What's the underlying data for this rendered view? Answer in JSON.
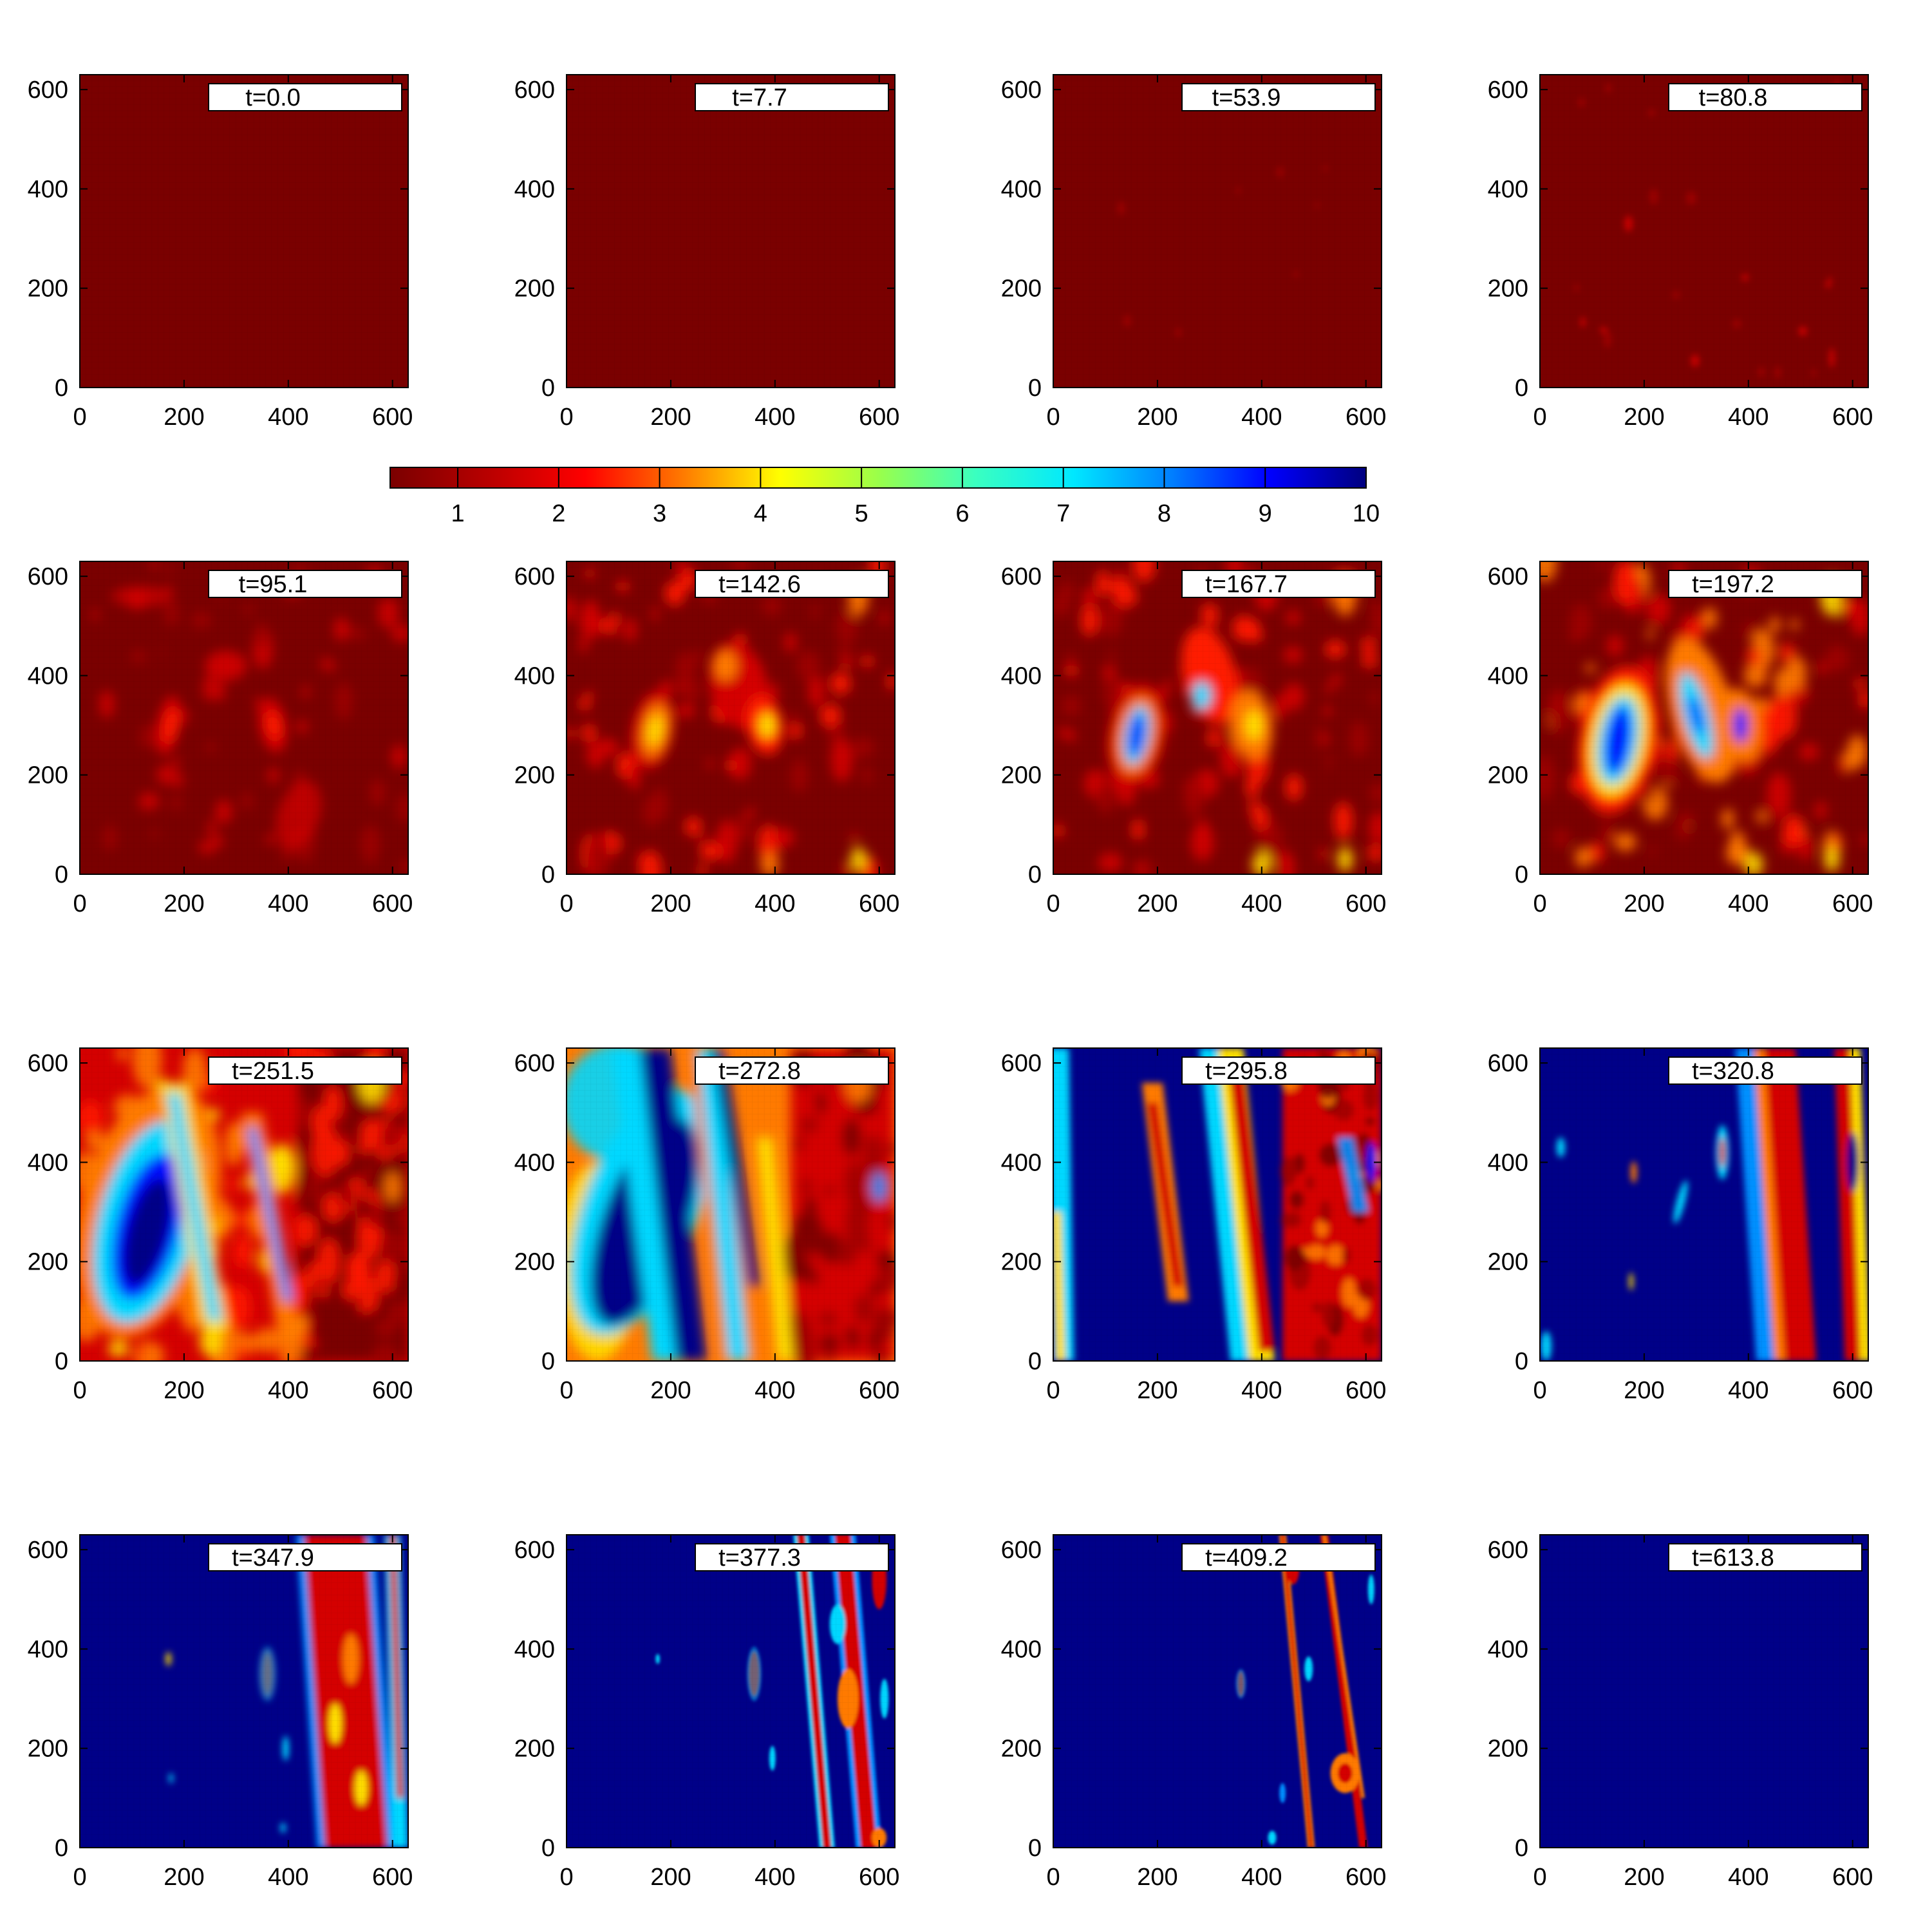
{
  "chart_data": {
    "type": "heatmap",
    "grid": {
      "rows": 4,
      "cols": 4
    },
    "x_ticks": [
      0,
      200,
      400,
      600
    ],
    "y_ticks": [
      0,
      200,
      400,
      600
    ],
    "xlim": [
      0,
      630
    ],
    "ylim": [
      0,
      630
    ],
    "colorbar": {
      "ticks": [
        1,
        2,
        3,
        4,
        5,
        6,
        7,
        8,
        9,
        10
      ],
      "range": [
        0.33,
        10
      ],
      "stops": [
        "#7a0000",
        "#b80000",
        "#ff0000",
        "#ff7a00",
        "#ffff00",
        "#9aff4a",
        "#3affc0",
        "#00e8ff",
        "#0080ff",
        "#0000ff",
        "#00007f"
      ]
    },
    "panels": [
      {
        "label": "t=0.0",
        "scene": "uniform_red"
      },
      {
        "label": "t=7.7",
        "scene": "uniform_red"
      },
      {
        "label": "t=53.9",
        "scene": "faint_specks"
      },
      {
        "label": "t=80.8",
        "scene": "sparse_specks"
      },
      {
        "label": "t=95.1",
        "scene": "early_patches"
      },
      {
        "label": "t=142.6",
        "scene": "growing_patches"
      },
      {
        "label": "t=167.7",
        "scene": "blue_core"
      },
      {
        "label": "t=197.2",
        "scene": "blue_core_large"
      },
      {
        "label": "t=251.5",
        "scene": "spreading_blue"
      },
      {
        "label": "t=272.8",
        "scene": "left_blue"
      },
      {
        "label": "t=295.8",
        "scene": "half_blue"
      },
      {
        "label": "t=320.8",
        "scene": "mostly_blue"
      },
      {
        "label": "t=347.9",
        "scene": "red_band"
      },
      {
        "label": "t=377.3",
        "scene": "narrow_bands"
      },
      {
        "label": "t=409.2",
        "scene": "thin_streaks"
      },
      {
        "label": "t=613.8",
        "scene": "uniform_blue"
      }
    ]
  }
}
